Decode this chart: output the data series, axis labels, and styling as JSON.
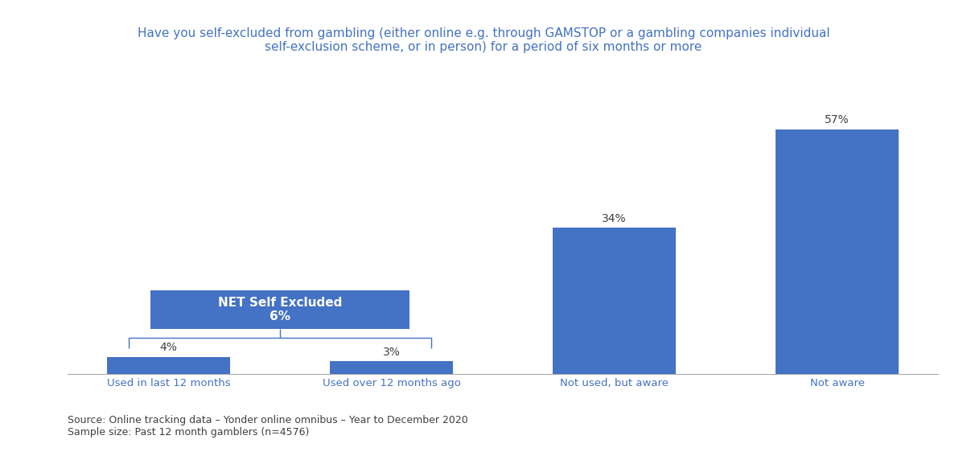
{
  "title": "Have you self-excluded from gambling (either online e.g. through GAMSTOP or a gambling companies individual\nself-exclusion scheme, or in person) for a period of six months or more",
  "title_color": "#4472c4",
  "title_fontsize": 11,
  "categories": [
    "Used in last 12 months",
    "Used over 12 months ago",
    "Not used, but aware",
    "Not aware"
  ],
  "values": [
    4,
    3,
    34,
    57
  ],
  "bar_color": "#4472c4",
  "bar_width": 0.55,
  "value_labels": [
    "4%",
    "3%",
    "34%",
    "57%"
  ],
  "net_box_label": "NET Self Excluded\n6%",
  "net_box_color": "#4472c4",
  "net_box_text_color": "#ffffff",
  "net_bracket_color": "#4472c4",
  "xlabel_color": "#4472c4",
  "xlabel_fontsize": 9.5,
  "value_label_fontsize": 10,
  "source_text": "Source: Online tracking data – Yonder online omnibus – Year to December 2020\nSample size: Past 12 month gamblers (n=4576)",
  "source_fontsize": 9,
  "source_color": "#404040",
  "background_color": "#ffffff",
  "ylim": [
    0,
    68
  ],
  "figsize": [
    12.02,
    5.67
  ],
  "dpi": 100
}
